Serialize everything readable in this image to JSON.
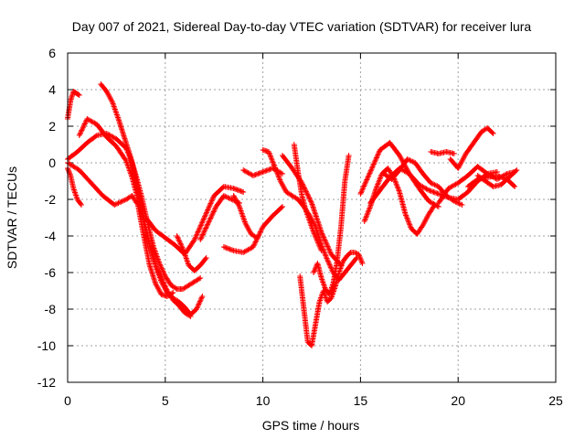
{
  "chart_data": {
    "type": "scatter",
    "title": "Day 007 of 2021, Sidereal Day-to-day VTEC variation (SDTVAR) for receiver lura",
    "xlabel": "GPS time / hours",
    "ylabel": "SDTVAR / TECUs",
    "xlim": [
      0,
      25
    ],
    "ylim": [
      -12,
      6
    ],
    "xticks": [
      0,
      5,
      10,
      15,
      20,
      25
    ],
    "yticks": [
      -12,
      -10,
      -8,
      -6,
      -4,
      -2,
      0,
      2,
      4,
      6
    ],
    "grid": true,
    "marker": "plus",
    "color": "#ff0000",
    "series": [
      {
        "x": [
          0.0,
          0.15,
          0.3,
          0.45,
          0.6
        ],
        "y": [
          2.4,
          3.4,
          3.9,
          3.8,
          3.7
        ]
      },
      {
        "x": [
          0.0,
          0.15,
          0.3,
          0.5,
          0.7
        ],
        "y": [
          -0.3,
          -0.7,
          -1.4,
          -2.0,
          -2.3
        ]
      },
      {
        "x": [
          0.0,
          0.5,
          1.0,
          1.5,
          2.0,
          2.5,
          3.0,
          3.3,
          3.6,
          3.9,
          4.2,
          4.5,
          4.8,
          5.1,
          5.4,
          5.7,
          6.0,
          6.3,
          6.6,
          6.9
        ],
        "y": [
          0.2,
          0.6,
          1.1,
          1.5,
          1.6,
          1.3,
          0.8,
          0.0,
          -1.5,
          -3.0,
          -4.5,
          -5.6,
          -6.5,
          -7.1,
          -7.4,
          -7.6,
          -7.9,
          -8.3,
          -8.0,
          -7.3
        ]
      },
      {
        "x": [
          0.6,
          1.0,
          1.5,
          2.0,
          2.5,
          3.0,
          3.3,
          3.6,
          3.9,
          4.2,
          4.5,
          4.8,
          5.1,
          5.4,
          5.7,
          6.0,
          6.3
        ],
        "y": [
          1.5,
          2.4,
          2.1,
          1.4,
          0.9,
          0.1,
          -0.8,
          -2.0,
          -3.3,
          -4.5,
          -5.6,
          -6.3,
          -7.0,
          -7.5,
          -7.8,
          -8.2,
          -8.4
        ]
      },
      {
        "x": [
          0.0,
          0.6,
          1.2,
          1.8,
          2.4,
          3.0,
          3.3,
          3.6,
          3.9,
          4.2,
          4.5,
          4.8,
          5.1,
          5.4
        ],
        "y": [
          0.0,
          -0.4,
          -1.1,
          -1.8,
          -2.3,
          -2.0,
          -1.8,
          -2.3,
          -4.0,
          -5.6,
          -6.6,
          -7.2,
          -7.3,
          -7.1
        ]
      },
      {
        "x": [
          1.7,
          2.0,
          2.3,
          2.6,
          2.9,
          3.2,
          3.5,
          3.8,
          4.1,
          4.4,
          4.7,
          5.0,
          5.3,
          5.6,
          5.9,
          6.2,
          6.5,
          6.8
        ],
        "y": [
          4.3,
          3.9,
          3.3,
          2.4,
          1.4,
          0.4,
          -0.7,
          -1.9,
          -3.3,
          -4.6,
          -5.5,
          -6.2,
          -6.7,
          -6.9,
          -6.9,
          -6.7,
          -6.5,
          -6.3
        ]
      },
      {
        "x": [
          4.0,
          4.5,
          5.0,
          5.5,
          6.0,
          6.5,
          7.0,
          7.5,
          8.0,
          8.5,
          9.0
        ],
        "y": [
          -3.0,
          -3.7,
          -4.1,
          -4.5,
          -5.0,
          -4.2,
          -3.0,
          -1.8,
          -1.3,
          -1.4,
          -1.6
        ]
      },
      {
        "x": [
          5.6,
          5.9,
          6.2,
          6.5,
          6.8,
          7.1
        ],
        "y": [
          -4.0,
          -4.7,
          -5.6,
          -5.9,
          -5.6,
          -5.2
        ]
      },
      {
        "x": [
          6.8,
          7.2,
          7.6,
          8.0,
          8.4,
          8.8
        ],
        "y": [
          -4.2,
          -3.3,
          -2.4,
          -1.8,
          -2.0,
          -2.2
        ]
      },
      {
        "x": [
          8.5,
          8.8,
          9.1,
          9.4,
          9.7
        ],
        "y": [
          -1.8,
          -2.4,
          -3.3,
          -3.9,
          -4.1
        ]
      },
      {
        "x": [
          8.0,
          8.5,
          9.0,
          9.5,
          10.0,
          10.5,
          11.0
        ],
        "y": [
          -4.6,
          -4.8,
          -4.9,
          -4.6,
          -3.5,
          -2.9,
          -2.4
        ]
      },
      {
        "x": [
          9.0,
          9.5,
          10.0,
          10.5,
          11.0
        ],
        "y": [
          -0.4,
          -0.7,
          -0.5,
          -0.3,
          -0.6
        ]
      },
      {
        "x": [
          10.0,
          10.3,
          10.6,
          10.9,
          11.2,
          11.5,
          11.8,
          12.1,
          12.4,
          12.7,
          13.0,
          13.3,
          13.6,
          13.9,
          14.2,
          14.5,
          14.8
        ],
        "y": [
          0.7,
          0.6,
          -0.2,
          -1.0,
          -1.6,
          -1.8,
          -2.0,
          -2.4,
          -2.9,
          -3.5,
          -4.5,
          -5.3,
          -6.0,
          -6.4,
          -6.0,
          -5.6,
          -5.2
        ]
      },
      {
        "x": [
          11.0,
          11.5,
          12.0,
          12.5,
          13.0,
          13.5,
          14.0
        ],
        "y": [
          0.4,
          -0.3,
          -1.1,
          -2.2,
          -3.8,
          -5.0,
          -5.6
        ]
      },
      {
        "x": [
          11.6,
          11.8,
          12.0,
          12.2,
          12.4,
          12.6,
          12.8,
          13.0
        ],
        "y": [
          1.0,
          -0.5,
          -1.8,
          -2.6,
          -3.2,
          -3.8,
          -4.3,
          -4.8
        ]
      },
      {
        "x": [
          11.9,
          12.1,
          12.3,
          12.5,
          12.7,
          12.9,
          13.1,
          13.3,
          13.5,
          13.7,
          13.9,
          14.1,
          14.3,
          14.5,
          14.7,
          14.9,
          15.1
        ],
        "y": [
          -6.2,
          -8.0,
          -9.8,
          -10.0,
          -8.8,
          -7.6,
          -7.0,
          -7.6,
          -7.4,
          -6.8,
          -6.0,
          -5.4,
          -5.1,
          -4.9,
          -4.9,
          -5.0,
          -5.5
        ]
      },
      {
        "x": [
          12.6,
          12.8,
          13.0,
          13.2,
          13.4,
          13.6,
          13.8,
          14.0,
          14.2,
          14.4
        ],
        "y": [
          -6.0,
          -5.5,
          -6.3,
          -6.9,
          -7.2,
          -6.6,
          -5.4,
          -3.5,
          -1.0,
          0.4
        ]
      },
      {
        "x": [
          15.2,
          15.5,
          15.8,
          16.1,
          16.4,
          16.7,
          17.0,
          17.3,
          17.6,
          17.9,
          18.2,
          18.5,
          18.8
        ],
        "y": [
          -3.2,
          -2.4,
          -1.4,
          -0.6,
          -0.3,
          -0.8,
          -1.6,
          -2.8,
          -3.6,
          -3.9,
          -3.4,
          -2.8,
          -2.3
        ]
      },
      {
        "x": [
          15.0,
          15.5,
          16.0,
          16.5,
          17.0,
          17.5,
          18.0,
          18.5,
          19.0,
          19.5,
          20.0,
          20.5,
          21.0,
          21.5,
          22.0
        ],
        "y": [
          -1.7,
          -0.5,
          0.7,
          1.1,
          0.4,
          -0.6,
          -1.2,
          -1.5,
          -1.7,
          -1.9,
          -2.0,
          -1.6,
          -1.0,
          -0.6,
          -0.5
        ]
      },
      {
        "x": [
          15.5,
          16.0,
          16.5,
          17.0,
          17.5,
          18.0,
          18.5,
          19.0
        ],
        "y": [
          -2.2,
          -1.5,
          -0.8,
          -0.3,
          -0.6,
          -1.4,
          -2.1,
          -2.4
        ]
      },
      {
        "x": [
          16.2,
          16.6,
          17.0,
          17.4,
          17.8,
          18.2,
          18.6,
          19.0,
          19.4,
          19.8,
          20.2
        ],
        "y": [
          -0.6,
          -0.9,
          -0.4,
          0.2,
          0.0,
          -0.6,
          -1.1,
          -1.3,
          -1.8,
          -2.1,
          -2.3
        ]
      },
      {
        "x": [
          18.6,
          19.0,
          19.4,
          19.8
        ],
        "y": [
          0.6,
          0.5,
          0.6,
          0.5
        ]
      },
      {
        "x": [
          19.6,
          20.0,
          20.4,
          20.8,
          21.2,
          21.5,
          21.8
        ],
        "y": [
          0.2,
          -0.3,
          0.5,
          1.1,
          1.7,
          1.9,
          1.6
        ]
      },
      {
        "x": [
          19.0,
          19.5,
          20.0,
          20.5,
          21.0,
          21.5,
          22.0,
          22.5,
          22.9
        ],
        "y": [
          -2.2,
          -1.4,
          -1.1,
          -0.7,
          -0.2,
          -0.6,
          -0.9,
          -0.6,
          -0.5
        ]
      },
      {
        "x": [
          20.5,
          21.0,
          21.5,
          22.0,
          22.5,
          22.9
        ],
        "y": [
          -1.3,
          -0.9,
          -0.8,
          -0.7,
          -0.9,
          -1.3
        ]
      },
      {
        "x": [
          21.0,
          21.4,
          21.8,
          22.2,
          22.6,
          23.0
        ],
        "y": [
          -0.7,
          -1.0,
          -1.3,
          -1.2,
          -0.8,
          -0.4
        ]
      }
    ]
  }
}
